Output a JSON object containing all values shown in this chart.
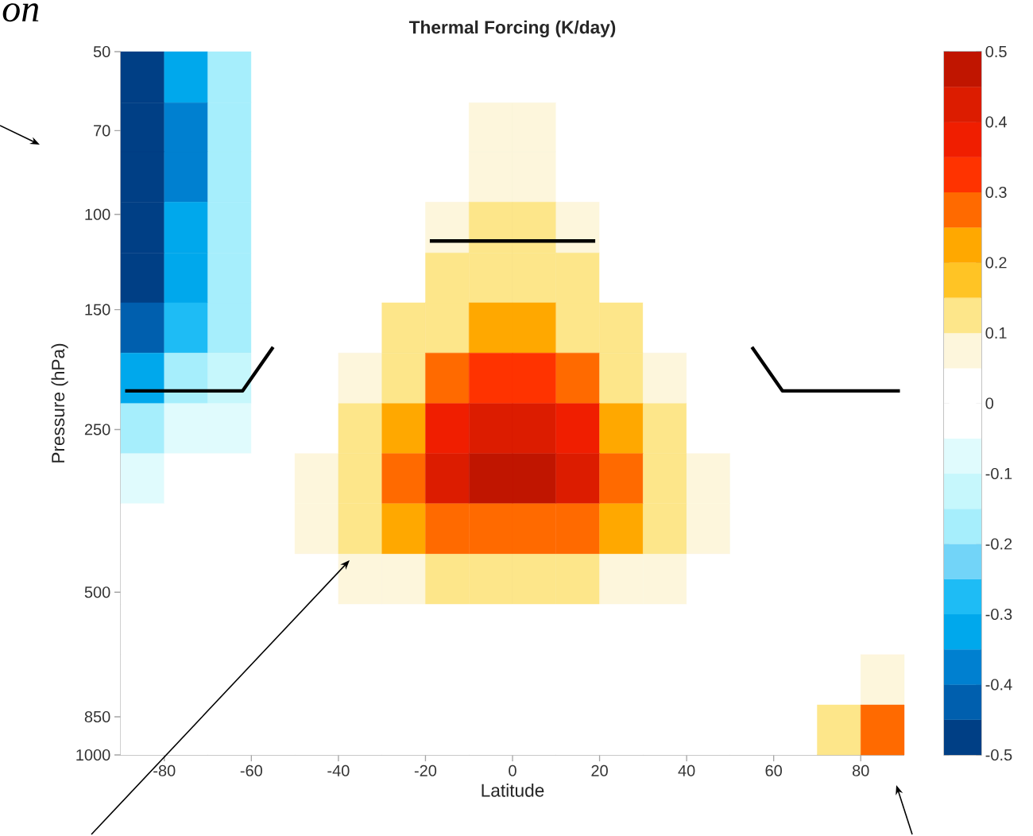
{
  "chart_data": {
    "type": "heatmap",
    "title": "Thermal Forcing (K/day)",
    "xlabel": "Latitude",
    "ylabel": "Pressure (hPa)",
    "x": [
      -85,
      -75,
      -65,
      -55,
      -45,
      -35,
      -25,
      -15,
      -5,
      5,
      15,
      25,
      35,
      45,
      55,
      65,
      75,
      85
    ],
    "y": [
      56,
      69,
      85,
      106,
      131,
      162,
      201,
      249,
      308,
      382,
      473,
      586,
      726,
      899
    ],
    "cells": [
      [
        -0.47,
        -0.32,
        -0.17,
        0,
        0,
        0,
        0,
        0,
        0,
        0,
        0,
        0,
        0,
        0,
        0,
        0,
        0,
        0
      ],
      [
        -0.47,
        -0.37,
        -0.17,
        0,
        0,
        0,
        0,
        0,
        0.07,
        0.07,
        0,
        0,
        0,
        0,
        0,
        0,
        0,
        0
      ],
      [
        -0.47,
        -0.37,
        -0.17,
        0,
        0,
        0,
        0,
        0,
        0.07,
        0.07,
        0,
        0,
        0,
        0,
        0,
        0,
        0,
        0
      ],
      [
        -0.47,
        -0.32,
        -0.17,
        0,
        0,
        0,
        0,
        0.07,
        0.12,
        0.12,
        0.07,
        0,
        0,
        0,
        0,
        0,
        0,
        0
      ],
      [
        -0.47,
        -0.32,
        -0.17,
        0,
        0,
        0,
        0,
        0.12,
        0.12,
        0.12,
        0.12,
        0,
        0,
        0,
        0,
        0,
        0,
        0
      ],
      [
        -0.42,
        -0.27,
        -0.17,
        0,
        0,
        0,
        0.12,
        0.12,
        0.22,
        0.22,
        0.12,
        0.12,
        0,
        0,
        0,
        0,
        0,
        0
      ],
      [
        -0.32,
        -0.17,
        -0.12,
        0,
        0,
        0.07,
        0.12,
        0.27,
        0.32,
        0.32,
        0.27,
        0.12,
        0.07,
        0,
        0,
        0,
        0,
        0
      ],
      [
        -0.17,
        -0.07,
        -0.07,
        0,
        0,
        0.12,
        0.22,
        0.37,
        0.42,
        0.42,
        0.37,
        0.22,
        0.12,
        0,
        0,
        0,
        0,
        0
      ],
      [
        -0.07,
        0,
        0,
        0,
        0.07,
        0.12,
        0.27,
        0.42,
        0.47,
        0.47,
        0.42,
        0.27,
        0.12,
        0.07,
        0,
        0,
        0,
        0
      ],
      [
        0,
        0,
        0,
        0,
        0.07,
        0.12,
        0.22,
        0.27,
        0.27,
        0.27,
        0.27,
        0.22,
        0.12,
        0.07,
        0,
        0,
        0,
        0
      ],
      [
        0,
        0,
        0,
        0,
        0,
        0.07,
        0.07,
        0.12,
        0.12,
        0.12,
        0.12,
        0.07,
        0.07,
        0,
        0,
        0,
        0,
        0
      ],
      [
        0,
        0,
        0,
        0,
        0,
        0,
        0,
        0,
        0,
        0,
        0,
        0,
        0,
        0,
        0,
        0,
        0,
        0
      ],
      [
        0,
        0,
        0,
        0,
        0,
        0,
        0,
        0,
        0,
        0,
        0,
        0,
        0,
        0,
        0,
        0,
        0,
        0.07
      ],
      [
        0,
        0,
        0,
        0,
        0,
        0,
        0,
        0,
        0,
        0,
        0,
        0,
        0,
        0,
        0,
        0,
        0.12,
        0.27
      ]
    ],
    "xlim": [
      -90,
      90
    ],
    "xticks": [
      -80,
      -60,
      -40,
      -20,
      0,
      20,
      40,
      60,
      80
    ],
    "ylim": [
      1000,
      50
    ],
    "yticks": [
      50,
      70,
      100,
      150,
      250,
      500,
      850,
      1000
    ],
    "log": "y",
    "clim": [
      -0.5,
      0.5
    ],
    "cticks": [
      -0.5,
      -0.4,
      -0.3,
      -0.2,
      -0.1,
      0,
      0.1,
      0.2,
      0.3,
      0.4,
      0.5
    ],
    "series": [
      {
        "type": "line",
        "color": "#000000",
        "x": [
          -89,
          -62,
          -55
        ],
        "values": [
          212,
          212,
          176
        ]
      },
      {
        "type": "line",
        "color": "#000000",
        "x": [
          -19,
          19
        ],
        "values": [
          112,
          112
        ]
      },
      {
        "type": "line",
        "color": "#000000",
        "x": [
          55,
          62,
          89
        ],
        "values": [
          176,
          212,
          212
        ]
      }
    ],
    "annotations": [
      "on"
    ]
  }
}
